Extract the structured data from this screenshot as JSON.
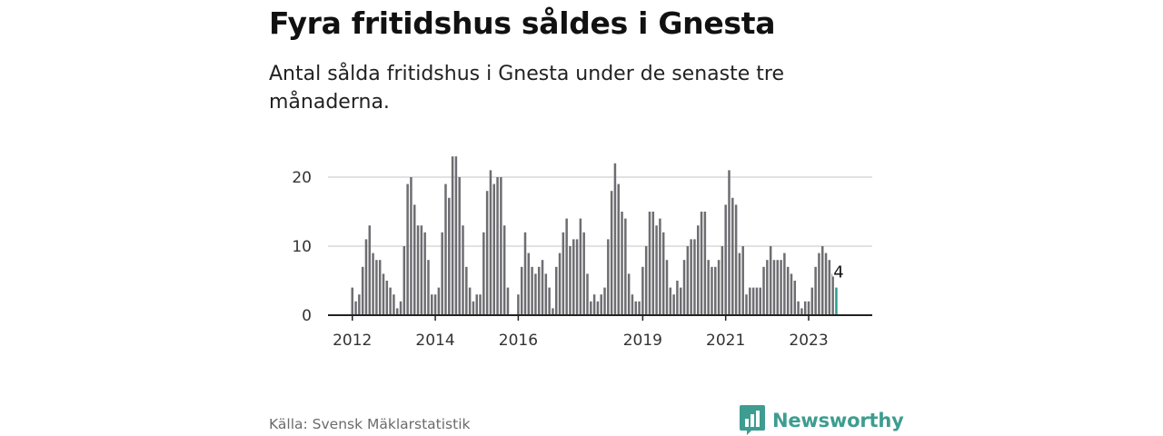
{
  "header": {
    "title": "Fyra fritidshus såldes i Gnesta",
    "subtitle": "Antal sålda fritidshus i Gnesta under de senaste tre månaderna."
  },
  "footer": {
    "source": "Källa: Svensk Mäklarstatistik",
    "brand": "Newsworthy"
  },
  "colors": {
    "bar": "#6d6d72",
    "highlight": "#2a9d8f",
    "grid": "#d9d9d9",
    "axis": "#222222",
    "brand": "#3d9d90"
  },
  "icons": {
    "brand_logo": "bar-chart-speech-bubble-icon"
  },
  "chart_data": {
    "type": "bar",
    "title": "Fyra fritidshus såldes i Gnesta",
    "subtitle": "Antal sålda fritidshus i Gnesta under de senaste tre månaderna.",
    "frequency": "monthly",
    "start": "2012-01",
    "values": [
      4,
      2,
      3,
      7,
      11,
      13,
      9,
      8,
      8,
      6,
      5,
      4,
      3,
      1,
      2,
      10,
      19,
      20,
      16,
      13,
      13,
      12,
      8,
      3,
      3,
      4,
      12,
      19,
      17,
      23,
      23,
      20,
      13,
      7,
      4,
      2,
      3,
      3,
      12,
      18,
      21,
      19,
      20,
      20,
      13,
      4,
      0,
      0,
      3,
      7,
      12,
      9,
      7,
      6,
      7,
      8,
      6,
      4,
      1,
      7,
      9,
      12,
      14,
      10,
      11,
      11,
      14,
      12,
      6,
      2,
      3,
      2,
      3,
      4,
      11,
      18,
      22,
      19,
      15,
      14,
      6,
      3,
      2,
      2,
      7,
      10,
      15,
      15,
      13,
      14,
      12,
      8,
      4,
      3,
      5,
      4,
      8,
      10,
      11,
      11,
      13,
      15,
      15,
      8,
      7,
      7,
      8,
      10,
      16,
      21,
      17,
      16,
      9,
      10,
      3,
      4,
      4,
      4,
      4,
      7,
      8,
      10,
      8,
      8,
      8,
      9,
      7,
      6,
      5,
      2,
      1,
      2,
      2,
      4,
      7,
      9,
      10,
      9,
      8,
      6,
      4
    ],
    "highlight": {
      "label": "4",
      "value": 4,
      "index": "last"
    },
    "x_ticks": [
      "2012",
      "2014",
      "2016",
      "2019",
      "2021",
      "2023"
    ],
    "y_ticks": [
      "0",
      "10",
      "20"
    ],
    "ylim": [
      0,
      24
    ],
    "grid": true
  }
}
